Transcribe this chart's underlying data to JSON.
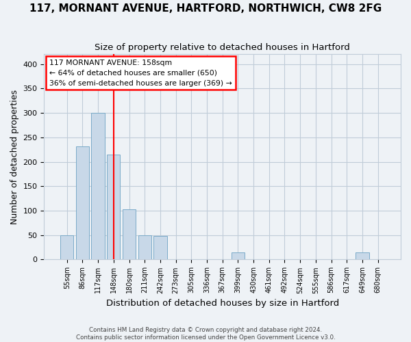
{
  "title1": "117, MORNANT AVENUE, HARTFORD, NORTHWICH, CW8 2FG",
  "title2": "Size of property relative to detached houses in Hartford",
  "xlabel": "Distribution of detached houses by size in Hartford",
  "ylabel": "Number of detached properties",
  "bins": [
    "55sqm",
    "86sqm",
    "117sqm",
    "148sqm",
    "180sqm",
    "211sqm",
    "242sqm",
    "273sqm",
    "305sqm",
    "336sqm",
    "367sqm",
    "399sqm",
    "430sqm",
    "461sqm",
    "492sqm",
    "524sqm",
    "555sqm",
    "586sqm",
    "617sqm",
    "649sqm",
    "680sqm"
  ],
  "values": [
    50,
    231,
    300,
    215,
    103,
    50,
    48,
    0,
    0,
    0,
    0,
    15,
    0,
    0,
    0,
    0,
    0,
    0,
    0,
    15,
    0
  ],
  "bar_color": "#c8d8e8",
  "bar_edge_color": "#7aaac8",
  "annotation_line1": "117 MORNANT AVENUE: 158sqm",
  "annotation_line2": "← 64% of detached houses are smaller (650)",
  "annotation_line3": "36% of semi-detached houses are larger (369) →",
  "annotation_box_color": "white",
  "annotation_box_edgecolor": "red",
  "vline_color": "red",
  "vline_pos": 3.0,
  "footer1": "Contains HM Land Registry data © Crown copyright and database right 2024.",
  "footer2": "Contains public sector information licensed under the Open Government Licence v3.0.",
  "bg_color": "#eef2f6",
  "grid_color": "#c0ccd8",
  "ylim": [
    0,
    420
  ],
  "yticks": [
    0,
    50,
    100,
    150,
    200,
    250,
    300,
    350,
    400
  ],
  "title1_fontsize": 11,
  "title2_fontsize": 9.5,
  "tick_fontsize": 7.0,
  "ylabel_fontsize": 9,
  "xlabel_fontsize": 9.5
}
